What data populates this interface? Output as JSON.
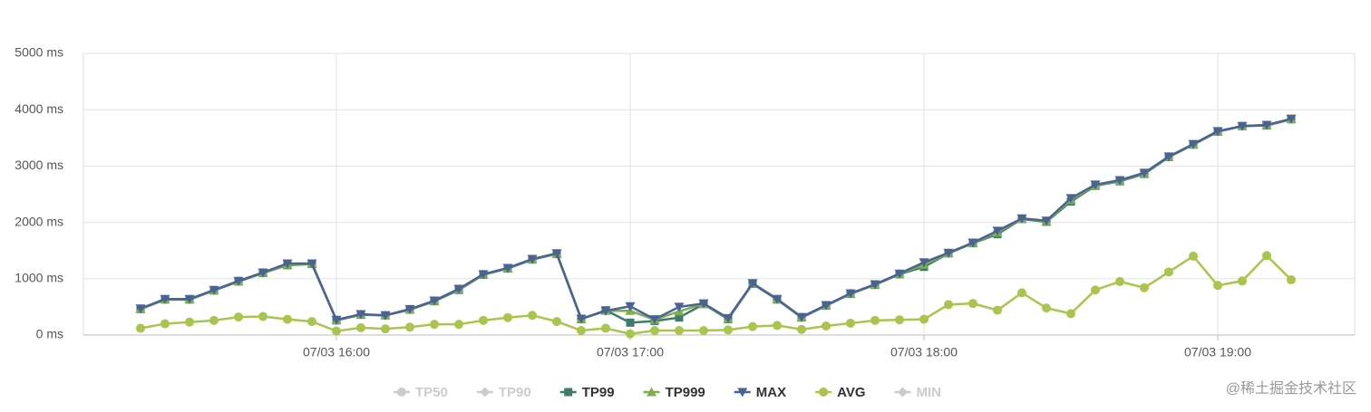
{
  "chart_data": {
    "type": "line",
    "categories": [
      null,
      null,
      null,
      null,
      null,
      null,
      null,
      null,
      "07/03 16:00",
      null,
      null,
      null,
      null,
      null,
      null,
      null,
      null,
      null,
      null,
      null,
      "07/03 17:00",
      null,
      null,
      null,
      null,
      null,
      null,
      null,
      null,
      null,
      null,
      null,
      "07/03 18:00",
      null,
      null,
      null,
      null,
      null,
      null,
      null,
      null,
      null,
      null,
      null,
      "07/03 19:00",
      null,
      null,
      null
    ],
    "ylim": [
      0,
      5000
    ],
    "yticks": [
      {
        "value": 0,
        "label": "0 ms"
      },
      {
        "value": 1000,
        "label": "1000 ms"
      },
      {
        "value": 2000,
        "label": "2000 ms"
      },
      {
        "value": 3000,
        "label": "3000 ms"
      },
      {
        "value": 4000,
        "label": "4000 ms"
      },
      {
        "value": 5000,
        "label": "5000 ms"
      }
    ],
    "grid": true,
    "legend": "bottom",
    "watermark": "@稀土掘金技术社区",
    "series": [
      {
        "name": "TP50",
        "color": "#cccccc",
        "marker": "circle",
        "visible": false,
        "values": [
          null,
          null,
          null,
          null,
          null,
          null,
          null,
          null,
          null,
          null,
          null,
          null,
          null,
          null,
          null,
          null,
          null,
          null,
          null,
          null,
          null,
          null,
          null,
          null,
          null,
          null,
          null,
          null,
          null,
          null,
          null,
          null,
          null,
          null,
          null,
          null,
          null,
          null,
          null,
          null,
          null,
          null,
          null,
          null,
          null,
          null,
          null,
          null
        ]
      },
      {
        "name": "TP90",
        "color": "#cccccc",
        "marker": "diamond",
        "visible": false,
        "values": [
          null,
          null,
          null,
          null,
          null,
          null,
          null,
          null,
          null,
          null,
          null,
          null,
          null,
          null,
          null,
          null,
          null,
          null,
          null,
          null,
          null,
          null,
          null,
          null,
          null,
          null,
          null,
          null,
          null,
          null,
          null,
          null,
          null,
          null,
          null,
          null,
          null,
          null,
          null,
          null,
          null,
          null,
          null,
          null,
          null,
          null,
          null,
          null
        ]
      },
      {
        "name": "TP99",
        "color": "#3f7a6c",
        "marker": "square",
        "visible": true,
        "values": [
          460,
          630,
          630,
          790,
          950,
          1100,
          1240,
          1260,
          260,
          360,
          350,
          450,
          600,
          800,
          1070,
          1180,
          1340,
          1440,
          280,
          440,
          220,
          250,
          310,
          550,
          280,
          910,
          630,
          310,
          520,
          730,
          890,
          1080,
          1210,
          1450,
          1630,
          1790,
          2060,
          2010,
          2370,
          2650,
          2730,
          2860,
          3160,
          3380,
          3610,
          3710,
          3720,
          3830
        ]
      },
      {
        "name": "TP999",
        "color": "#7eae4f",
        "marker": "triangle-up",
        "visible": true,
        "values": [
          465,
          635,
          635,
          795,
          955,
          1105,
          1250,
          1265,
          265,
          365,
          350,
          455,
          605,
          810,
          1075,
          1185,
          1345,
          1445,
          285,
          430,
          430,
          270,
          420,
          555,
          290,
          915,
          635,
          315,
          525,
          735,
          895,
          1085,
          1250,
          1455,
          1635,
          1820,
          2065,
          2020,
          2400,
          2660,
          2740,
          2870,
          3165,
          3385,
          3615,
          3710,
          3725,
          3835
        ]
      },
      {
        "name": "MAX",
        "color": "#4a6393",
        "marker": "triangle-down",
        "visible": true,
        "values": [
          470,
          640,
          640,
          800,
          960,
          1110,
          1270,
          1270,
          270,
          370,
          350,
          460,
          610,
          820,
          1080,
          1190,
          1350,
          1450,
          290,
          430,
          510,
          280,
          500,
          560,
          300,
          920,
          640,
          320,
          530,
          740,
          900,
          1090,
          1290,
          1460,
          1640,
          1850,
          2070,
          2030,
          2430,
          2670,
          2750,
          2880,
          3170,
          3390,
          3620,
          3710,
          3730,
          3840
        ]
      },
      {
        "name": "AVG",
        "color": "#a9c54e",
        "marker": "circle",
        "visible": true,
        "values": [
          120,
          200,
          230,
          260,
          320,
          330,
          280,
          240,
          70,
          130,
          110,
          140,
          190,
          190,
          260,
          310,
          350,
          240,
          80,
          120,
          20,
          80,
          80,
          80,
          90,
          150,
          170,
          100,
          160,
          210,
          260,
          270,
          280,
          540,
          560,
          440,
          750,
          480,
          380,
          800,
          950,
          840,
          1120,
          1400,
          880,
          960,
          1410,
          980
        ]
      },
      {
        "name": "MIN",
        "color": "#cccccc",
        "marker": "diamond",
        "visible": false,
        "values": [
          null,
          null,
          null,
          null,
          null,
          null,
          null,
          null,
          null,
          null,
          null,
          null,
          null,
          null,
          null,
          null,
          null,
          null,
          null,
          null,
          null,
          null,
          null,
          null,
          null,
          null,
          null,
          null,
          null,
          null,
          null,
          null,
          null,
          null,
          null,
          null,
          null,
          null,
          null,
          null,
          null,
          null,
          null,
          null,
          null,
          null,
          null,
          null
        ]
      }
    ]
  }
}
